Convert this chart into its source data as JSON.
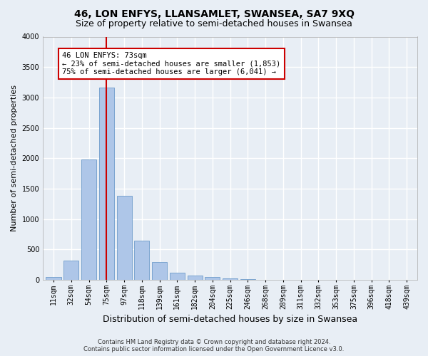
{
  "title": "46, LON ENFYS, LLANSAMLET, SWANSEA, SA7 9XQ",
  "subtitle": "Size of property relative to semi-detached houses in Swansea",
  "xlabel": "Distribution of semi-detached houses by size in Swansea",
  "ylabel": "Number of semi-detached properties",
  "footer_line1": "Contains HM Land Registry data © Crown copyright and database right 2024.",
  "footer_line2": "Contains public sector information licensed under the Open Government Licence v3.0.",
  "categories": [
    "11sqm",
    "32sqm",
    "54sqm",
    "75sqm",
    "97sqm",
    "118sqm",
    "139sqm",
    "161sqm",
    "182sqm",
    "204sqm",
    "225sqm",
    "246sqm",
    "268sqm",
    "289sqm",
    "311sqm",
    "332sqm",
    "353sqm",
    "375sqm",
    "396sqm",
    "418sqm",
    "439sqm"
  ],
  "values": [
    50,
    320,
    1980,
    3160,
    1380,
    640,
    295,
    110,
    65,
    45,
    25,
    10,
    0,
    0,
    0,
    0,
    0,
    0,
    0,
    0,
    0
  ],
  "bar_color": "#aec6e8",
  "bar_edge_color": "#5a8fc3",
  "highlight_bar_index": 3,
  "highlight_line_color": "#cc0000",
  "annotation_line1": "46 LON ENFYS: 73sqm",
  "annotation_line2": "← 23% of semi-detached houses are smaller (1,853)",
  "annotation_line3": "75% of semi-detached houses are larger (6,041) →",
  "annotation_box_color": "#ffffff",
  "annotation_box_edge": "#cc0000",
  "ylim": [
    0,
    4000
  ],
  "yticks": [
    0,
    500,
    1000,
    1500,
    2000,
    2500,
    3000,
    3500,
    4000
  ],
  "background_color": "#e8eef5",
  "plot_background_color": "#e8eef5",
  "grid_color": "#ffffff",
  "title_fontsize": 10,
  "subtitle_fontsize": 9,
  "tick_fontsize": 7,
  "ylabel_fontsize": 8,
  "xlabel_fontsize": 9,
  "footer_fontsize": 6,
  "annotation_fontsize": 7.5
}
